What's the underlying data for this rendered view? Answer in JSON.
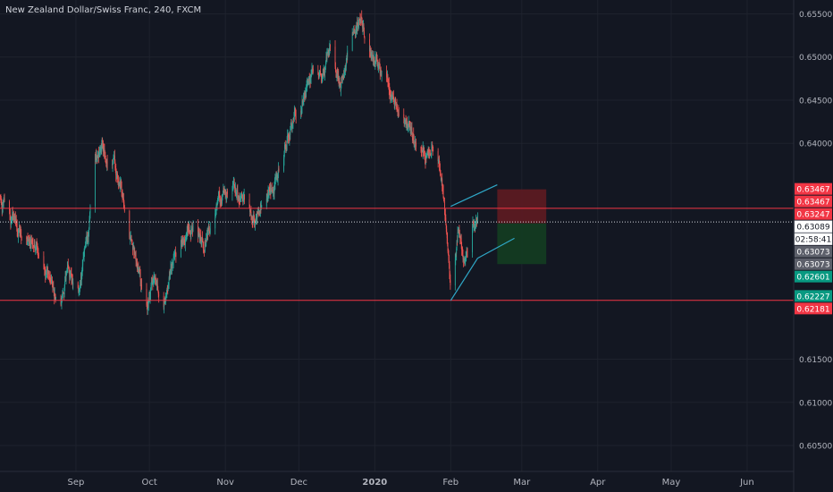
{
  "header": {
    "title": "New Zealand Dollar/Swiss Franc, 240, FXCM"
  },
  "colors": {
    "background": "#131722",
    "grid": "#1e222d",
    "axis_text": "#b2b5be",
    "up": "#26a69a",
    "down": "#ef5350",
    "level_line": "#f23645",
    "trend_line": "#2fa8c8",
    "stop_zone": "#5b1a22",
    "target_zone": "#133b22"
  },
  "chart_data": {
    "type": "candlestick",
    "symbol": "NZD/CHF",
    "timeframe": "240",
    "source": "FXCM",
    "x_labels": [
      "Sep",
      "Oct",
      "Nov",
      "Dec",
      "2020",
      "Feb",
      "Mar",
      "Apr",
      "May",
      "Jun"
    ],
    "y_ticks": [
      "0.65500",
      "0.65000",
      "0.64500",
      "0.64000",
      "0.61500",
      "0.61000",
      "0.60500"
    ],
    "ylim": [
      0.602,
      0.6566
    ],
    "grid": true,
    "current_price": 0.63089,
    "countdown": "02:58:41",
    "price_tags": [
      {
        "value": 0.63467,
        "text": "0.63467",
        "style": "red"
      },
      {
        "value": 0.63467,
        "text": "0.63467",
        "style": "red"
      },
      {
        "value": 0.63247,
        "text": "0.63247",
        "style": "red"
      },
      {
        "value": 0.63089,
        "text": "0.63089",
        "style": "current"
      },
      {
        "value": 0.63089,
        "text": "02:58:41",
        "style": "timer"
      },
      {
        "value": 0.63073,
        "text": "0.63073",
        "style": "gray"
      },
      {
        "value": 0.63073,
        "text": "0.63073",
        "style": "gray"
      },
      {
        "value": 0.62601,
        "text": "0.62601",
        "style": "green"
      },
      {
        "value": 0.62227,
        "text": "0.62227",
        "style": "green"
      },
      {
        "value": 0.62181,
        "text": "0.62181",
        "style": "red"
      }
    ],
    "horizontal_levels": [
      0.63247,
      0.62181
    ],
    "short_position": {
      "entry": 0.63073,
      "stop": 0.63467,
      "target": 0.62601
    },
    "trend_lines": [
      {
        "from": [
          "2020-02-01",
          0.6327
        ],
        "to": [
          "2020-02-20",
          0.6352
        ]
      },
      {
        "from": [
          "2020-02-01",
          0.6218
        ],
        "to": [
          "2020-02-12",
          0.6267
        ]
      },
      {
        "from": [
          "2020-02-12",
          0.6267
        ],
        "to": [
          "2020-02-27",
          0.629
        ]
      }
    ],
    "price_path": [
      [
        "2019-08-01",
        0.634
      ],
      [
        "2019-08-05",
        0.6315
      ],
      [
        "2019-08-09",
        0.6298
      ],
      [
        "2019-08-13",
        0.629
      ],
      [
        "2019-08-17",
        0.627
      ],
      [
        "2019-08-21",
        0.6248
      ],
      [
        "2019-08-25",
        0.6212
      ],
      [
        "2019-08-29",
        0.625
      ],
      [
        "2019-09-02",
        0.6228
      ],
      [
        "2019-09-06",
        0.6288
      ],
      [
        "2019-09-09",
        0.638
      ],
      [
        "2019-09-12",
        0.6395
      ],
      [
        "2019-09-16",
        0.6385
      ],
      [
        "2019-09-19",
        0.6355
      ],
      [
        "2019-09-23",
        0.63
      ],
      [
        "2019-09-26",
        0.6255
      ],
      [
        "2019-09-30",
        0.6215
      ],
      [
        "2019-10-03",
        0.624
      ],
      [
        "2019-10-07",
        0.6222
      ],
      [
        "2019-10-11",
        0.6265
      ],
      [
        "2019-10-15",
        0.629
      ],
      [
        "2019-10-19",
        0.6305
      ],
      [
        "2019-10-23",
        0.6285
      ],
      [
        "2019-10-27",
        0.631
      ],
      [
        "2019-10-31",
        0.634
      ],
      [
        "2019-11-04",
        0.635
      ],
      [
        "2019-11-08",
        0.633
      ],
      [
        "2019-11-12",
        0.631
      ],
      [
        "2019-11-16",
        0.632
      ],
      [
        "2019-11-20",
        0.6345
      ],
      [
        "2019-11-24",
        0.638
      ],
      [
        "2019-11-28",
        0.642
      ],
      [
        "2019-12-02",
        0.6445
      ],
      [
        "2019-12-06",
        0.648
      ],
      [
        "2019-12-10",
        0.647
      ],
      [
        "2019-12-14",
        0.651
      ],
      [
        "2019-12-18",
        0.647
      ],
      [
        "2019-12-22",
        0.652
      ],
      [
        "2019-12-26",
        0.6545
      ],
      [
        "2019-12-29",
        0.651
      ],
      [
        "2020-01-02",
        0.649
      ],
      [
        "2020-01-06",
        0.647
      ],
      [
        "2020-01-10",
        0.644
      ],
      [
        "2020-01-14",
        0.642
      ],
      [
        "2020-01-18",
        0.64
      ],
      [
        "2020-01-22",
        0.639
      ],
      [
        "2020-01-26",
        0.641
      ],
      [
        "2020-01-28",
        0.636
      ],
      [
        "2020-01-30",
        0.631
      ],
      [
        "2020-02-01",
        0.6235
      ],
      [
        "2020-02-04",
        0.63
      ],
      [
        "2020-02-07",
        0.626
      ],
      [
        "2020-02-10",
        0.63
      ],
      [
        "2020-02-12",
        0.631
      ]
    ]
  }
}
